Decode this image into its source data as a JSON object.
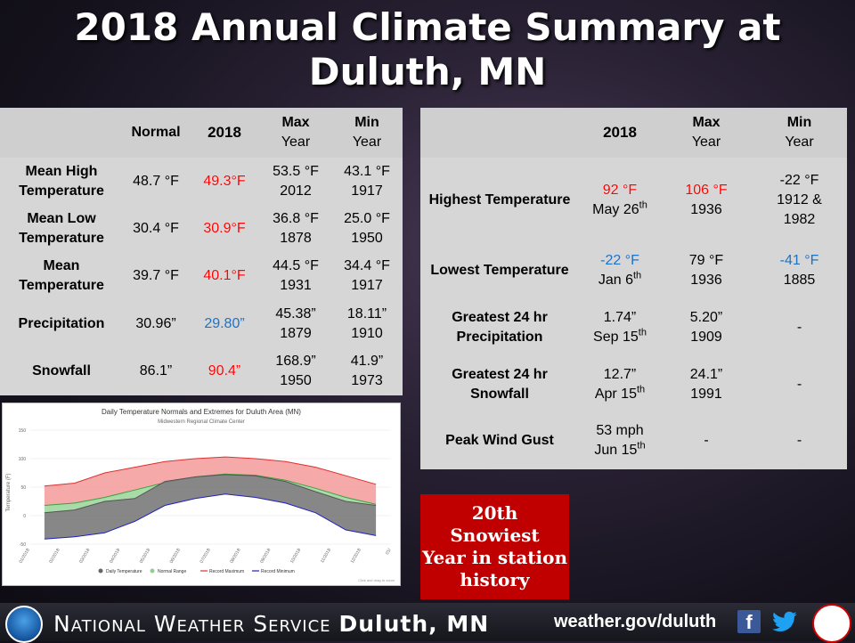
{
  "title_line1": "2018 Annual Climate Summary at",
  "title_line2": "Duluth, MN",
  "left_table": {
    "headers": {
      "normal": "Normal",
      "year": "2018",
      "max_1": "Max",
      "max_2": "Year",
      "min_1": "Min",
      "min_2": "Year"
    },
    "rows": [
      {
        "label_1": "Mean High",
        "label_2": "Temperature",
        "normal": "48.7 °F",
        "year": "49.3°F",
        "max_1": "53.5 °F",
        "max_2": "2012",
        "min_1": "43.1 °F",
        "min_2": "1917"
      },
      {
        "label_1": "Mean Low",
        "label_2": "Temperature",
        "normal": "30.4 °F",
        "year": "30.9°F",
        "max_1": "36.8 °F",
        "max_2": "1878",
        "min_1": "25.0 °F",
        "min_2": "1950"
      },
      {
        "label_1": "Mean",
        "label_2": "Temperature",
        "normal": "39.7 °F",
        "year": "40.1°F",
        "max_1": "44.5 °F",
        "max_2": "1931",
        "min_1": "34.4 °F",
        "min_2": "1917"
      },
      {
        "label_1": "Precipitation",
        "label_2": "",
        "normal": "30.96”",
        "year": "29.80”",
        "max_1": "45.38”",
        "max_2": "1879",
        "min_1": "18.11”",
        "min_2": "1910"
      },
      {
        "label_1": "Snowfall",
        "label_2": "",
        "normal": "86.1”",
        "year": "90.4”",
        "max_1": "168.9”",
        "max_2": "1950",
        "min_1": "41.9”",
        "min_2": "1973"
      }
    ]
  },
  "right_table": {
    "headers": {
      "year": "2018",
      "max_1": "Max",
      "max_2": "Year",
      "min_1": "Min",
      "min_2": "Year"
    },
    "rows": [
      {
        "label_1": "Highest Temperature",
        "label_2": "",
        "year_1": "92 °F",
        "year_2": "May 26",
        "year_sup": "th",
        "max_1": "106 °F",
        "max_2": "1936",
        "min_1": "-22 °F",
        "min_2": "1912 &",
        "min_3": "1982"
      },
      {
        "label_1": "Lowest Temperature",
        "label_2": "",
        "year_1": "-22 °F",
        "year_2": "Jan 6",
        "year_sup": "th",
        "max_1": "79 °F",
        "max_2": "1936",
        "min_1": "-41 °F",
        "min_2": "1885",
        "min_3": ""
      },
      {
        "label_1": "Greatest 24 hr",
        "label_2": "Precipitation",
        "year_1": "1.74”",
        "year_2": "Sep 15",
        "year_sup": "th",
        "max_1": "5.20”",
        "max_2": "1909",
        "min_1": "-",
        "min_2": "",
        "min_3": ""
      },
      {
        "label_1": "Greatest 24 hr",
        "label_2": "Snowfall",
        "year_1": "12.7”",
        "year_2": "Apr 15",
        "year_sup": "th",
        "max_1": "24.1”",
        "max_2": "1991",
        "min_1": "-",
        "min_2": "",
        "min_3": ""
      },
      {
        "label_1": "Peak Wind Gust",
        "label_2": "",
        "year_1": "53 mph",
        "year_2": "Jun 15",
        "year_sup": "th",
        "max_1": "-",
        "max_2": "",
        "min_1": "-",
        "min_2": "",
        "min_3": ""
      }
    ]
  },
  "callout": {
    "line1": "20th",
    "line2": "Snowiest",
    "line3": "Year in station",
    "line4": "history"
  },
  "chart": {
    "title": "Daily Temperature Normals and Extremes for Duluth Area (MN)",
    "subtitle": "Midwestern Regional Climate Center",
    "ylabel": "Temperature (F)",
    "yticks": [
      "150",
      "100",
      "50",
      "0",
      "-50"
    ],
    "xticks": [
      "01/2018",
      "02/2018",
      "03/2018",
      "04/2018",
      "05/2018",
      "06/2018",
      "07/2018",
      "08/2018",
      "09/2018",
      "10/2018",
      "11/2018",
      "12/2018",
      "01/"
    ],
    "legend": [
      "Daily Temperature",
      "Normal Range",
      "Record Maximum",
      "Record Minimum"
    ],
    "credit": "Click and drag to zoom"
  },
  "footer": {
    "name_prefix": "National Weather Service",
    "name_city": "Duluth, MN",
    "url": "weather.gov/duluth"
  },
  "colors": {
    "red": "#ff0000",
    "blue": "#1e73c8",
    "callout": "#c00000"
  },
  "chart_data": {
    "type": "area",
    "title": "Daily Temperature Normals and Extremes for Duluth Area (MN)",
    "ylabel": "Temperature (F)",
    "ylim": [
      -50,
      150
    ],
    "x": [
      "01/2018",
      "02/2018",
      "03/2018",
      "04/2018",
      "05/2018",
      "06/2018",
      "07/2018",
      "08/2018",
      "09/2018",
      "10/2018",
      "11/2018",
      "12/2018"
    ],
    "series": [
      {
        "name": "Record Maximum",
        "values": [
          52,
          57,
          75,
          85,
          95,
          100,
          103,
          100,
          95,
          85,
          70,
          55
        ]
      },
      {
        "name": "Normal Range",
        "values": [
          18,
          22,
          32,
          45,
          58,
          68,
          73,
          71,
          62,
          48,
          32,
          20
        ]
      },
      {
        "name": "Daily Temperature",
        "values": [
          5,
          10,
          25,
          30,
          60,
          68,
          72,
          70,
          60,
          42,
          25,
          18
        ]
      },
      {
        "name": "Record Minimum",
        "values": [
          -41,
          -37,
          -30,
          -10,
          18,
          30,
          38,
          32,
          22,
          5,
          -25,
          -35
        ]
      }
    ]
  }
}
